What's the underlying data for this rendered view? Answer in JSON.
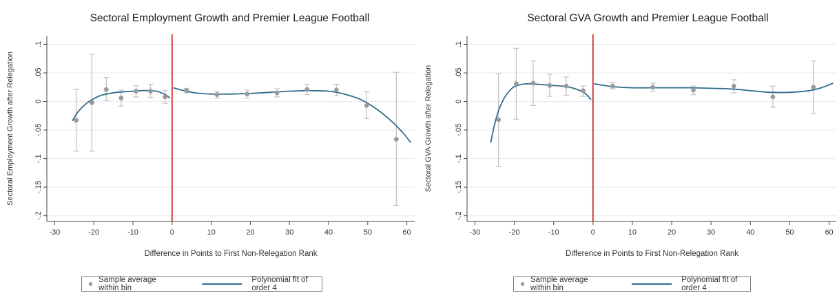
{
  "colors": {
    "series_line": "#2e6d8e",
    "points": "#9a9a9a",
    "error_bars": "#c4c4c4",
    "threshold": "#d62728",
    "grid": "#e6eaee",
    "axis": "#444444"
  },
  "legend": {
    "points_label": "Sample average within bin",
    "line_label": "Polynomial fit of order 4"
  },
  "chart_data": [
    {
      "type": "scatter",
      "title": "Sectoral Employment Growth and Premier League Football",
      "xlabel": "Difference in Points to First Non-Relegation Rank",
      "ylabel": "Sectoral Employment Growth after Relegation",
      "xlim": [
        -32,
        62
      ],
      "ylim": [
        -0.21,
        0.115
      ],
      "xticks": [
        -30,
        -20,
        -10,
        0,
        10,
        20,
        30,
        40,
        50,
        60
      ],
      "xtick_labels": [
        "-30",
        "-20",
        "-10",
        "0",
        "10",
        "20",
        "30",
        "40",
        "50",
        "60"
      ],
      "yticks": [
        0.1,
        0.05,
        0,
        -0.05,
        -0.1,
        -0.15,
        -0.2
      ],
      "ytick_labels": [
        ".1",
        ".05",
        "0",
        "-.05",
        "-.1",
        "-.15",
        "-.2"
      ],
      "grid": true,
      "vline_x": 0,
      "series": [
        {
          "name": "Sample average within bin",
          "points": [
            {
              "x": -24.5,
              "y": -0.033,
              "lo": -0.087,
              "hi": 0.021
            },
            {
              "x": -20.5,
              "y": -0.002,
              "lo": -0.087,
              "hi": 0.083
            },
            {
              "x": -16.8,
              "y": 0.021,
              "lo": 0.002,
              "hi": 0.042
            },
            {
              "x": -13,
              "y": 0.006,
              "lo": -0.008,
              "hi": 0.02
            },
            {
              "x": -9.2,
              "y": 0.018,
              "lo": 0.008,
              "hi": 0.028
            },
            {
              "x": -5.5,
              "y": 0.018,
              "lo": 0.007,
              "hi": 0.03
            },
            {
              "x": -1.8,
              "y": 0.008,
              "lo": -0.003,
              "hi": 0.019
            },
            {
              "x": 3.7,
              "y": 0.019,
              "lo": 0.015,
              "hi": 0.023
            },
            {
              "x": 11.5,
              "y": 0.012,
              "lo": 0.006,
              "hi": 0.017
            },
            {
              "x": 19.2,
              "y": 0.013,
              "lo": 0.006,
              "hi": 0.02
            },
            {
              "x": 26.8,
              "y": 0.015,
              "lo": 0.008,
              "hi": 0.022
            },
            {
              "x": 34.5,
              "y": 0.021,
              "lo": 0.012,
              "hi": 0.03
            },
            {
              "x": 42,
              "y": 0.02,
              "lo": 0.01,
              "hi": 0.03
            },
            {
              "x": 49.7,
              "y": -0.007,
              "lo": -0.03,
              "hi": 0.017
            },
            {
              "x": 57.3,
              "y": -0.066,
              "lo": -0.182,
              "hi": 0.051
            }
          ]
        },
        {
          "name": "Polynomial fit of order 4",
          "segments": [
            [
              [
                -25.5,
                -0.034
              ],
              [
                -24,
                -0.018
              ],
              [
                -22,
                -0.004
              ],
              [
                -20,
                0.005
              ],
              [
                -18,
                0.011
              ],
              [
                -16,
                0.014
              ],
              [
                -14,
                0.016
              ],
              [
                -12,
                0.017
              ],
              [
                -10,
                0.018
              ],
              [
                -8,
                0.019
              ],
              [
                -6,
                0.019
              ],
              [
                -4,
                0.018
              ],
              [
                -2,
                0.013
              ],
              [
                -0.5,
                0.006
              ]
            ],
            [
              [
                0.3,
                0.024
              ],
              [
                3,
                0.019
              ],
              [
                6,
                0.015
              ],
              [
                10,
                0.013
              ],
              [
                15,
                0.013
              ],
              [
                20,
                0.014
              ],
              [
                25,
                0.016
              ],
              [
                30,
                0.018
              ],
              [
                35,
                0.019
              ],
              [
                40,
                0.018
              ],
              [
                44,
                0.013
              ],
              [
                48,
                0.004
              ],
              [
                52,
                -0.012
              ],
              [
                56,
                -0.034
              ],
              [
                59,
                -0.055
              ],
              [
                61,
                -0.072
              ]
            ]
          ]
        }
      ]
    },
    {
      "type": "scatter",
      "title": "Sectoral GVA Growth and Premier League Football",
      "xlabel": "Difference in Points to First Non-Relegation Rank",
      "ylabel": "Sectoral GVA Growth after Relegation",
      "xlim": [
        -32,
        62
      ],
      "ylim": [
        -0.21,
        0.115
      ],
      "xticks": [
        -30,
        -20,
        -10,
        0,
        10,
        20,
        30,
        40,
        50,
        60
      ],
      "xtick_labels": [
        "-30",
        "-20",
        "-10",
        "0",
        "10",
        "20",
        "30",
        "40",
        "50",
        "60"
      ],
      "yticks": [
        0.1,
        0.05,
        0,
        -0.05,
        -0.1,
        -0.15,
        -0.2
      ],
      "ytick_labels": [
        ".1",
        ".05",
        "0",
        "-.05",
        "-.1",
        "-.15",
        "-.2"
      ],
      "grid": true,
      "vline_x": 0,
      "series": [
        {
          "name": "Sample average within bin",
          "points": [
            {
              "x": -24,
              "y": -0.032,
              "lo": -0.114,
              "hi": 0.049
            },
            {
              "x": -19.5,
              "y": 0.031,
              "lo": -0.031,
              "hi": 0.093
            },
            {
              "x": -15.2,
              "y": 0.032,
              "lo": -0.007,
              "hi": 0.071
            },
            {
              "x": -11,
              "y": 0.028,
              "lo": 0.009,
              "hi": 0.048
            },
            {
              "x": -6.8,
              "y": 0.027,
              "lo": 0.011,
              "hi": 0.043
            },
            {
              "x": -2.5,
              "y": 0.019,
              "lo": 0.009,
              "hi": 0.027
            },
            {
              "x": 5,
              "y": 0.027,
              "lo": 0.022,
              "hi": 0.033
            },
            {
              "x": 15.2,
              "y": 0.025,
              "lo": 0.018,
              "hi": 0.032
            },
            {
              "x": 25.5,
              "y": 0.02,
              "lo": 0.012,
              "hi": 0.027
            },
            {
              "x": 35.8,
              "y": 0.027,
              "lo": 0.015,
              "hi": 0.038
            },
            {
              "x": 45.7,
              "y": 0.008,
              "lo": -0.01,
              "hi": 0.027
            },
            {
              "x": 56,
              "y": 0.025,
              "lo": -0.021,
              "hi": 0.071
            }
          ]
        },
        {
          "name": "Polynomial fit of order 4",
          "segments": [
            [
              [
                -26,
                -0.072
              ],
              [
                -25,
                -0.04
              ],
              [
                -24,
                -0.016
              ],
              [
                -23,
                0.0
              ],
              [
                -22,
                0.012
              ],
              [
                -21,
                0.02
              ],
              [
                -20,
                0.026
              ],
              [
                -18,
                0.03
              ],
              [
                -16,
                0.031
              ],
              [
                -14,
                0.03
              ],
              [
                -12,
                0.029
              ],
              [
                -10,
                0.028
              ],
              [
                -8,
                0.027
              ],
              [
                -6,
                0.025
              ],
              [
                -4,
                0.021
              ],
              [
                -2,
                0.014
              ],
              [
                -0.5,
                0.003
              ]
            ],
            [
              [
                0.3,
                0.031
              ],
              [
                5,
                0.026
              ],
              [
                10,
                0.024
              ],
              [
                15,
                0.024
              ],
              [
                20,
                0.024
              ],
              [
                25,
                0.024
              ],
              [
                30,
                0.023
              ],
              [
                35,
                0.022
              ],
              [
                40,
                0.019
              ],
              [
                45,
                0.016
              ],
              [
                50,
                0.016
              ],
              [
                55,
                0.019
              ],
              [
                58,
                0.024
              ],
              [
                61,
                0.032
              ]
            ]
          ]
        }
      ]
    }
  ]
}
